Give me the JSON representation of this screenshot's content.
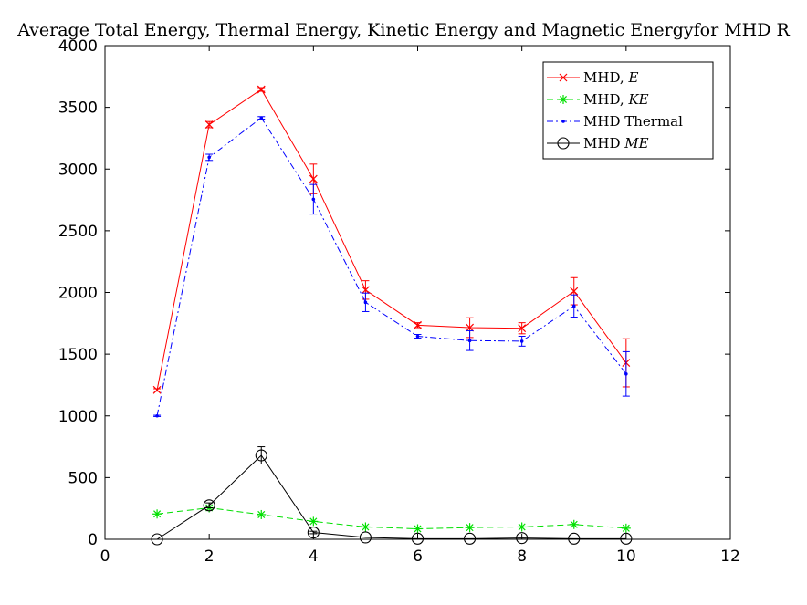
{
  "chart_data": {
    "type": "line",
    "title": "Average Total Energy, Thermal Energy, Kinetic Energy and Magnetic Energyfor MHD R",
    "xlabel": "",
    "ylabel": "",
    "xlim": [
      0,
      12
    ],
    "ylim": [
      0,
      4000
    ],
    "xticks": [
      0,
      2,
      4,
      6,
      8,
      10,
      12
    ],
    "yticks": [
      0,
      500,
      1000,
      1500,
      2000,
      2500,
      3000,
      3500,
      4000
    ],
    "grid": false,
    "legend_position": "top-right",
    "series": [
      {
        "name": "MHD, E",
        "color": "#ff0000",
        "line_style": "solid",
        "marker": "x-cross",
        "x": [
          1,
          2,
          3,
          4,
          5,
          6,
          7,
          8,
          9,
          10
        ],
        "y": [
          1210,
          3360,
          3645,
          2920,
          2020,
          1735,
          1715,
          1710,
          2010,
          1430
        ],
        "err": [
          10,
          25,
          15,
          120,
          75,
          20,
          80,
          45,
          110,
          195
        ]
      },
      {
        "name": "MHD, KE",
        "color": "#00e000",
        "line_style": "dashed",
        "marker": "asterisk",
        "x": [
          1,
          2,
          3,
          4,
          5,
          6,
          7,
          8,
          9,
          10
        ],
        "y": [
          205,
          255,
          200,
          145,
          100,
          85,
          95,
          100,
          120,
          90
        ],
        "err": [
          0,
          0,
          0,
          0,
          0,
          0,
          0,
          0,
          0,
          0
        ]
      },
      {
        "name": "MHD Thermal",
        "color": "#0000ff",
        "line_style": "dashdot",
        "marker": "dot",
        "x": [
          1,
          2,
          3,
          4,
          5,
          6,
          7,
          8,
          9,
          10
        ],
        "y": [
          1000,
          3095,
          3415,
          2755,
          1920,
          1645,
          1610,
          1605,
          1890,
          1340
        ],
        "err": [
          5,
          25,
          10,
          120,
          75,
          15,
          80,
          40,
          90,
          180
        ]
      },
      {
        "name": "MHD ME",
        "color": "#000000",
        "line_style": "solid",
        "marker": "circle",
        "x": [
          1,
          2,
          3,
          4,
          5,
          6,
          7,
          8,
          9,
          10
        ],
        "y": [
          0,
          275,
          680,
          55,
          15,
          5,
          5,
          10,
          5,
          5
        ],
        "err": [
          0,
          20,
          70,
          10,
          0,
          0,
          0,
          0,
          0,
          0
        ]
      }
    ]
  },
  "legend": [
    {
      "prefix": "MHD, ",
      "emph": "E"
    },
    {
      "prefix": "MHD, ",
      "emph": "KE"
    },
    {
      "prefix": "MHD Thermal",
      "emph": ""
    },
    {
      "prefix": "MHD ",
      "emph": "ME"
    }
  ]
}
